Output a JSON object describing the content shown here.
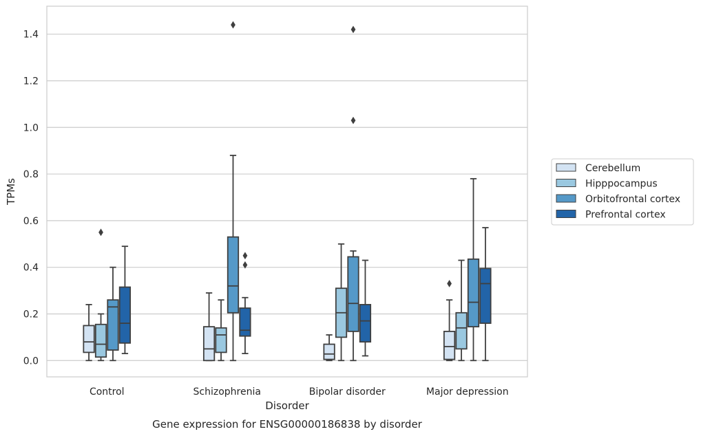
{
  "chart_data": {
    "type": "box",
    "title": "",
    "caption": "Gene expression for ENSG00000186838 by disorder",
    "xlabel": "Disorder",
    "ylabel": "TPMs",
    "ylim": [
      -0.07,
      1.52
    ],
    "yticks": [
      0.0,
      0.2,
      0.4,
      0.6,
      0.8,
      1.0,
      1.2,
      1.4
    ],
    "grid": "horizontal",
    "legend_position": "right",
    "categories": [
      "Control",
      "Schizophrenia",
      "Bipolar disorder",
      "Major depression"
    ],
    "series": [
      {
        "name": "Cerebellum",
        "color": "#d3e3f3",
        "boxes": [
          {
            "category": "Control",
            "min": 0.0,
            "q1": 0.035,
            "median": 0.08,
            "q3": 0.15,
            "max": 0.24,
            "outliers": []
          },
          {
            "category": "Schizophrenia",
            "min": 0.0,
            "q1": 0.0,
            "median": 0.05,
            "q3": 0.145,
            "max": 0.29,
            "outliers": []
          },
          {
            "category": "Bipolar disorder",
            "min": 0.0,
            "q1": 0.005,
            "median": 0.028,
            "q3": 0.07,
            "max": 0.11,
            "outliers": []
          },
          {
            "category": "Major depression",
            "min": 0.0,
            "q1": 0.005,
            "median": 0.06,
            "q3": 0.125,
            "max": 0.26,
            "outliers": [
              0.33
            ]
          }
        ]
      },
      {
        "name": "Hipppocampus",
        "color": "#9ac8e0",
        "boxes": [
          {
            "category": "Control",
            "min": 0.0,
            "q1": 0.015,
            "median": 0.07,
            "q3": 0.155,
            "max": 0.2,
            "outliers": [
              0.55
            ]
          },
          {
            "category": "Schizophrenia",
            "min": 0.0,
            "q1": 0.035,
            "median": 0.11,
            "q3": 0.14,
            "max": 0.26,
            "outliers": []
          },
          {
            "category": "Bipolar disorder",
            "min": 0.0,
            "q1": 0.1,
            "median": 0.205,
            "q3": 0.31,
            "max": 0.5,
            "outliers": []
          },
          {
            "category": "Major depression",
            "min": 0.0,
            "q1": 0.05,
            "median": 0.14,
            "q3": 0.205,
            "max": 0.43,
            "outliers": []
          }
        ]
      },
      {
        "name": "Orbitofrontal cortex",
        "color": "#5599c8",
        "boxes": [
          {
            "category": "Control",
            "min": 0.0,
            "q1": 0.045,
            "median": 0.23,
            "q3": 0.26,
            "max": 0.4,
            "outliers": []
          },
          {
            "category": "Schizophrenia",
            "min": 0.0,
            "q1": 0.205,
            "median": 0.32,
            "q3": 0.53,
            "max": 0.88,
            "outliers": [
              1.44
            ]
          },
          {
            "category": "Bipolar disorder",
            "min": 0.0,
            "q1": 0.125,
            "median": 0.245,
            "q3": 0.445,
            "max": 0.47,
            "outliers": [
              1.03,
              1.42
            ]
          },
          {
            "category": "Major depression",
            "min": 0.0,
            "q1": 0.145,
            "median": 0.25,
            "q3": 0.435,
            "max": 0.78,
            "outliers": []
          }
        ]
      },
      {
        "name": "Prefrontal cortex",
        "color": "#2264a8",
        "boxes": [
          {
            "category": "Control",
            "min": 0.03,
            "q1": 0.075,
            "median": 0.16,
            "q3": 0.315,
            "max": 0.49,
            "outliers": []
          },
          {
            "category": "Schizophrenia",
            "min": 0.03,
            "q1": 0.105,
            "median": 0.13,
            "q3": 0.225,
            "max": 0.27,
            "outliers": [
              0.41,
              0.45
            ]
          },
          {
            "category": "Bipolar disorder",
            "min": 0.02,
            "q1": 0.08,
            "median": 0.17,
            "q3": 0.24,
            "max": 0.43,
            "outliers": []
          },
          {
            "category": "Major depression",
            "min": 0.0,
            "q1": 0.16,
            "median": 0.33,
            "q3": 0.395,
            "max": 0.57,
            "outliers": []
          }
        ]
      }
    ]
  }
}
